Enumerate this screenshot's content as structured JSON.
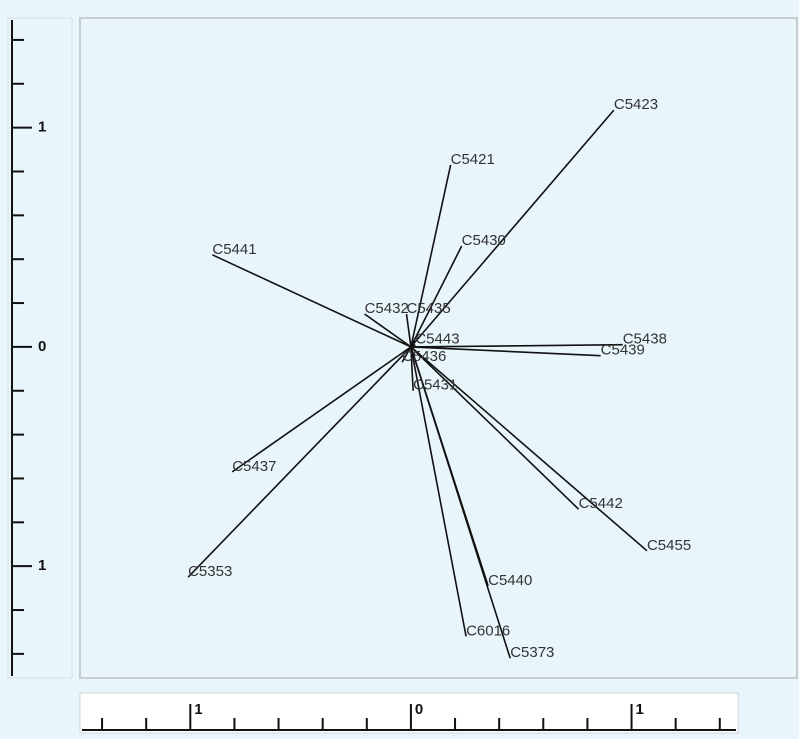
{
  "chart_data": {
    "type": "vector",
    "labels": [
      "C5423",
      "C5421",
      "C5430",
      "C5441",
      "C5432",
      "C5435",
      "C5443",
      "C5436",
      "C5431",
      "C5438",
      "C5439",
      "C5437",
      "C5353",
      "C5442",
      "C5455",
      "C5440",
      "C6016",
      "C5373"
    ],
    "x": [
      0.92,
      0.18,
      0.23,
      -0.9,
      -0.21,
      -0.02,
      0.02,
      -0.04,
      0.01,
      0.96,
      0.86,
      -0.81,
      -1.01,
      0.76,
      1.07,
      0.35,
      0.25,
      0.45
    ],
    "y": [
      1.08,
      0.83,
      0.46,
      0.42,
      0.15,
      0.15,
      0.01,
      -0.07,
      -0.2,
      0.01,
      -0.04,
      -0.57,
      -1.05,
      -0.74,
      -0.93,
      -1.09,
      -1.32,
      -1.42
    ],
    "color": "#111111",
    "xlim": [
      -1.5,
      1.75
    ],
    "ylim": [
      -1.51,
      1.5
    ],
    "xticks": [
      {
        "value": -1,
        "label": "1"
      },
      0,
      1
    ],
    "yticks": [
      {
        "value": -1,
        "label": "1"
      },
      0,
      1
    ],
    "x_minor_ticks": [
      -1.4,
      -1.2,
      -0.8,
      -0.6,
      -0.4,
      -0.2,
      0.2,
      0.4,
      0.6,
      0.8,
      1.2,
      1.4
    ],
    "y_minor_ticks": [
      -1.4,
      -1.2,
      -0.8,
      -0.6,
      -0.4,
      -0.2,
      0.2,
      0.4,
      0.6,
      0.8,
      1.2,
      1.4
    ]
  }
}
